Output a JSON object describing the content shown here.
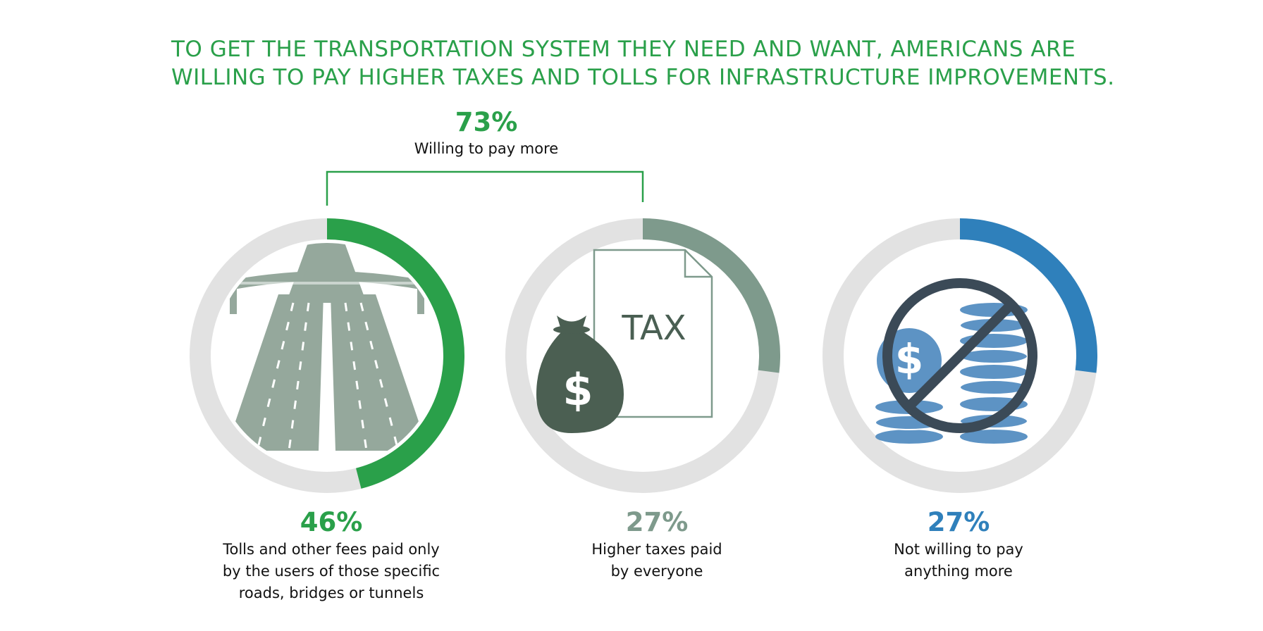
{
  "title": {
    "line1": "TO GET THE TRANSPORTATION SYSTEM THEY NEED AND WANT, AMERICANS ARE",
    "line2": "WILLING TO PAY HIGHER TAXES AND TOLLS FOR INFRASTRUCTURE IMPROVEMENTS."
  },
  "group": {
    "value": "73%",
    "label": "Willing to pay more",
    "color": "#2aa04a"
  },
  "icons": {
    "tax_text": "TAX"
  },
  "colors": {
    "track": "#e2e2e2",
    "green": "#2aa04a",
    "gray_green": "#7e9a8c",
    "blue": "#2f80bb",
    "icon_gray": "#95a89c"
  },
  "chart_data": {
    "type": "donut",
    "title": "TO GET THE TRANSPORTATION SYSTEM THEY NEED AND WANT, AMERICANS ARE WILLING TO PAY HIGHER TAXES AND TOLLS FOR INFRASTRUCTURE IMPROVEMENTS.",
    "group_annotation": {
      "value": 73,
      "label": "Willing to pay more",
      "includes": [
        0,
        1
      ]
    },
    "series": [
      {
        "value": 46,
        "display": "46%",
        "label_lines": [
          "Tolls and other fees paid only",
          "by the users of those specific",
          "roads, bridges or tunnels"
        ],
        "color": "#2aa04a",
        "icon": "highway-icon"
      },
      {
        "value": 27,
        "display": "27%",
        "label_lines": [
          "Higher taxes paid",
          "by everyone"
        ],
        "color": "#7e9a8c",
        "icon": "money-bag-tax-icon"
      },
      {
        "value": 27,
        "display": "27%",
        "label_lines": [
          "Not willing to pay",
          "anything more"
        ],
        "color": "#2f80bb",
        "icon": "no-money-icon"
      }
    ]
  }
}
